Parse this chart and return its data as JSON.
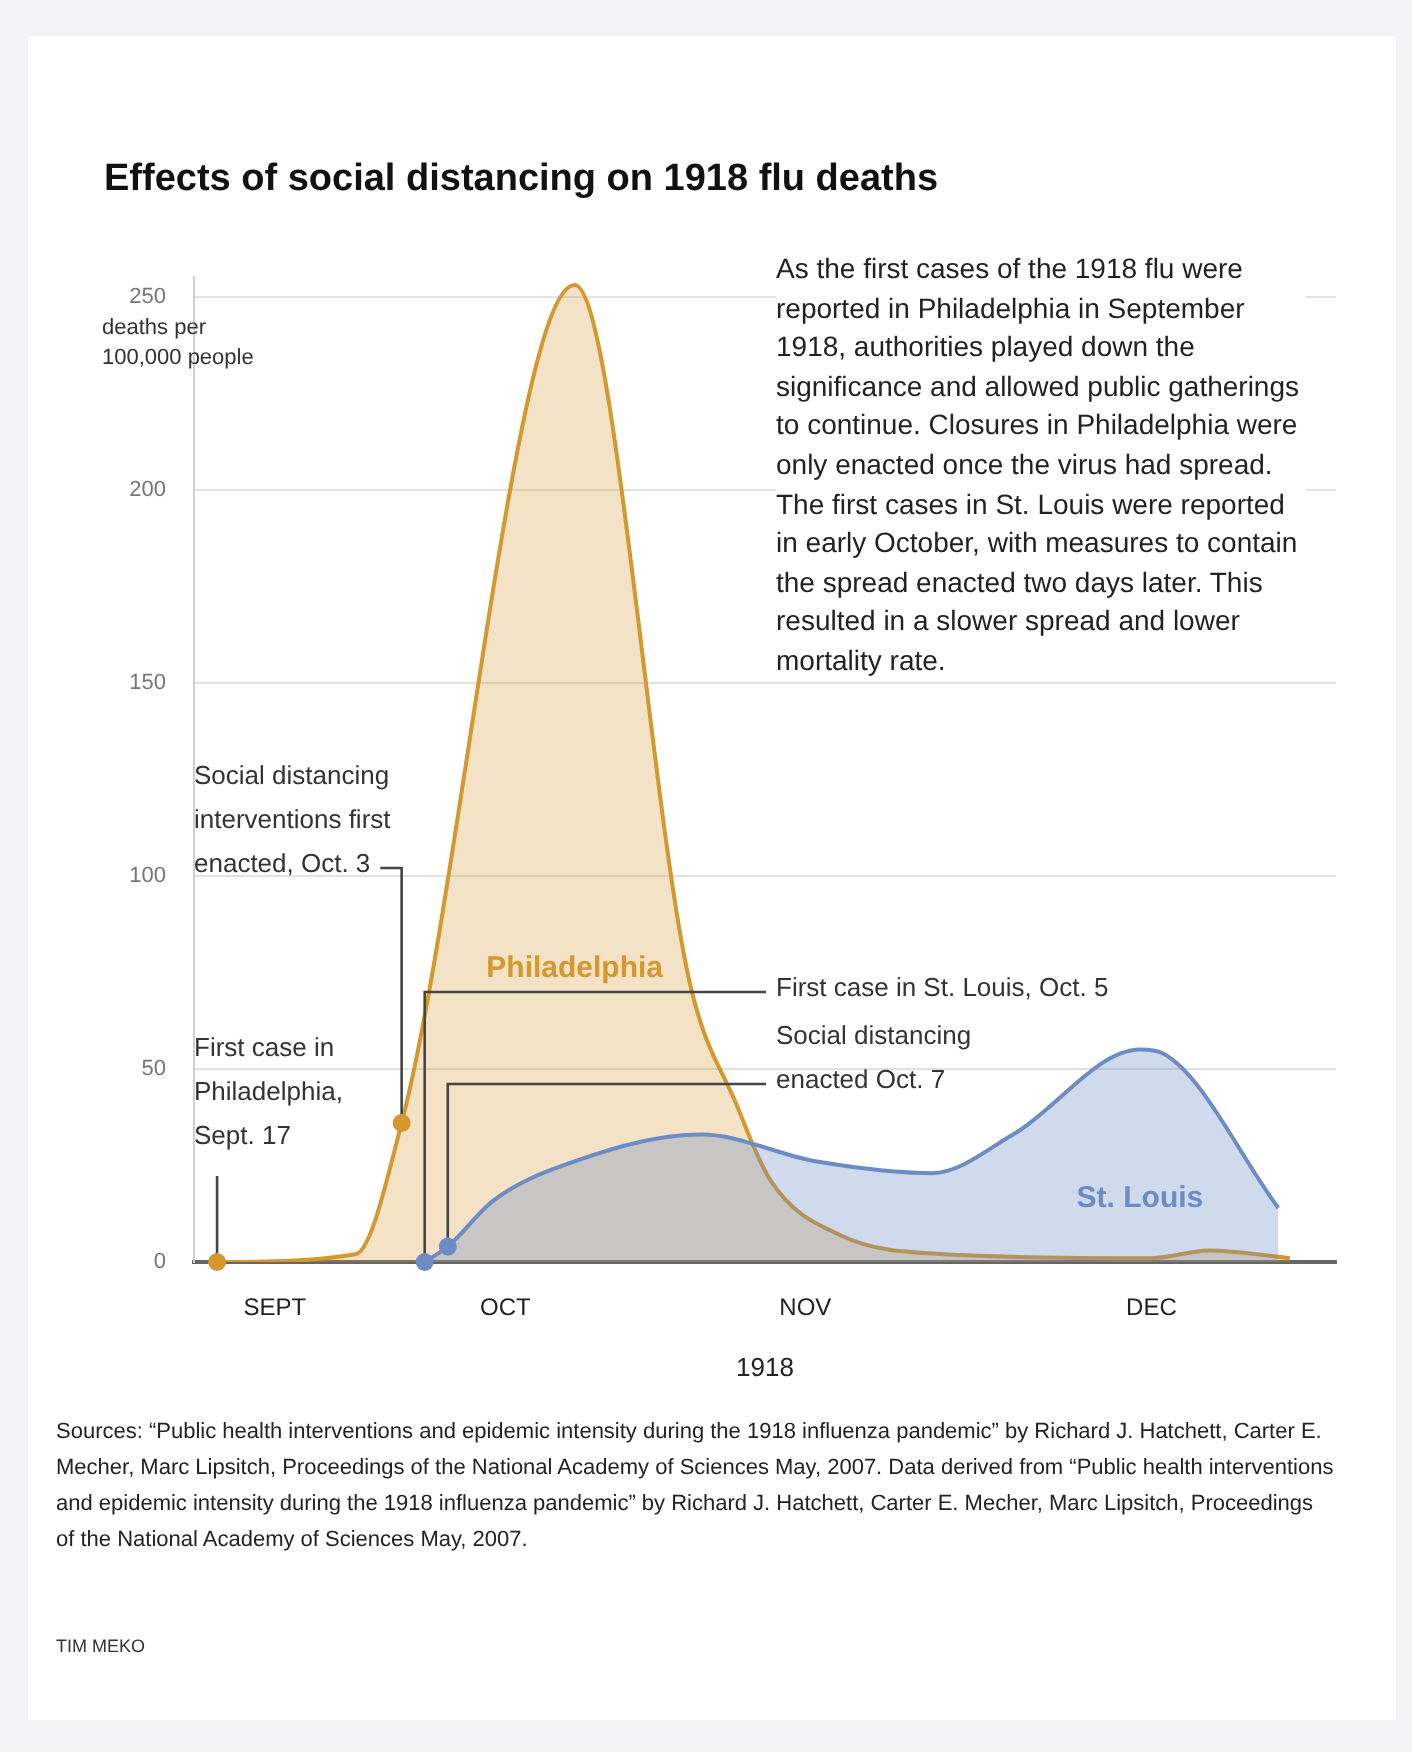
{
  "chart_data": {
    "type": "area",
    "title": "Effects of social distancing on 1918 flu deaths",
    "ylabel": "deaths per 100,000 people",
    "xlabel": "1918",
    "xlim": [
      "--09-15",
      "--12-23"
    ],
    "xticks": [
      {
        "value": "--09-22",
        "label": "SEPT"
      },
      {
        "value": "--10-12",
        "label": "OCT"
      },
      {
        "value": "--11-07",
        "label": "NOV"
      },
      {
        "value": "--12-07",
        "label": "DEC"
      }
    ],
    "ylim": [
      0,
      255
    ],
    "yticks": [
      0,
      50,
      100,
      150,
      200,
      250
    ],
    "grid": "y",
    "legend": false,
    "series": [
      {
        "name": "Philadelphia",
        "color": "#d4982e",
        "x": [
          "--09-17",
          "--09-29",
          "--10-03",
          "--10-18",
          "--10-28",
          "--11-01",
          "--11-04",
          "--11-10",
          "--11-19",
          "--12-07",
          "--12-12",
          "--12-19"
        ],
        "values": [
          0,
          2,
          36,
          253,
          72,
          41,
          21,
          7,
          2,
          1,
          3,
          1
        ]
      },
      {
        "name": "St. Louis",
        "color": "#6d8cc6",
        "x": [
          "--10-05",
          "--10-07",
          "--10-11",
          "--10-17",
          "--10-29",
          "--11-08",
          "--11-18",
          "--11-25",
          "--12-06",
          "--12-08",
          "--12-18"
        ],
        "values": [
          0,
          4,
          16,
          25,
          33,
          26,
          23,
          33,
          55,
          54,
          14
        ]
      }
    ],
    "annotations": [
      "As the first cases of the 1918 flu were reported in Philadelphia in September 1918, authorities played down the significance and allowed public gatherings to continue. Closures in Philadelphia were only enacted once the virus had spread. The first cases in St. Louis were reported in early October, with measures to contain the spread enacted two days later. This resulted in a slower spread and lower mortality rate.",
      {
        "text": "Social distancing interventions first enacted, Oct. 3",
        "x": "--10-03",
        "y": 36
      },
      {
        "text": "First case in Philadelphia, Sept. 17",
        "x": "--09-17",
        "y": 0
      },
      {
        "text": "First case in St. Louis, Oct. 5",
        "x": "--10-05",
        "y": 0
      },
      {
        "text": "Social distancing enacted Oct. 7",
        "x": "--10-07",
        "y": 4
      },
      "Sources: “Public health interventions and epidemic intensity during the 1918 influenza pandemic” by Richard J. Hatchett, Carter E. Mecher, Marc Lipsitch, Proceedings of the National Academy of Sciences May, 2007. Data derived from “Public health interventions and epidemic intensity during the 1918 influenza pandemic” by Richard J. Hatchett, Carter E. Mecher, Marc Lipsitch, Proceedings of the National Academy of Sciences May, 2007.",
      "TIM MEKO"
    ]
  }
}
